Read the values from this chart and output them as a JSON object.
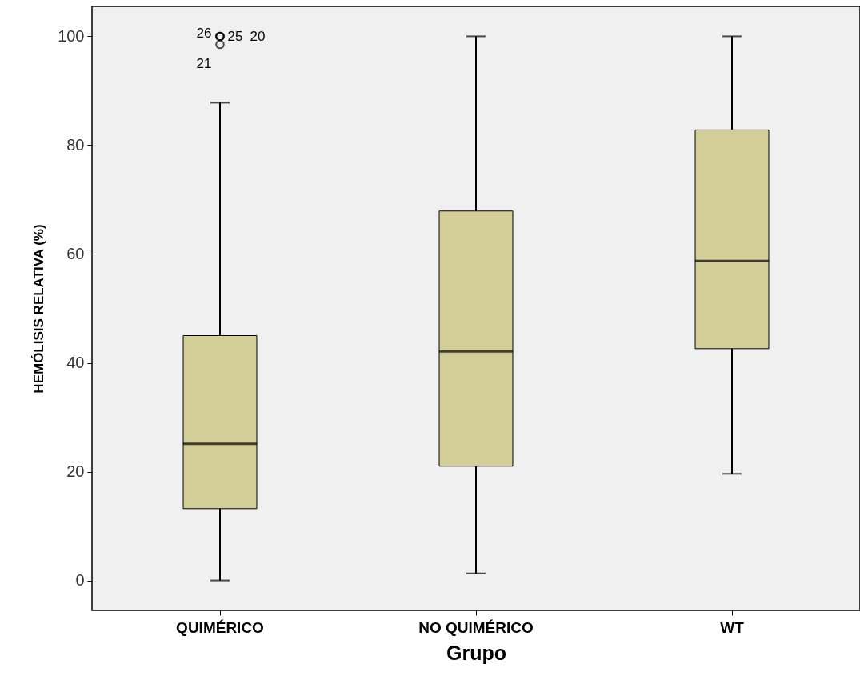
{
  "chart_data": {
    "type": "box",
    "xlabel": "Grupo",
    "ylabel": "HEMÓLISIS RELATIVA (%)",
    "categories": [
      "QUIMÉRICO",
      "NO QUIMÉRICO",
      "WT"
    ],
    "color": "#d3ce97",
    "boxes": [
      {
        "low": 0,
        "q1": 13.2,
        "median": 25.1,
        "q3": 45.0,
        "high": 87.8,
        "outliers": [
          100,
          100,
          100,
          98.5
        ]
      },
      {
        "low": 1.3,
        "q1": 21.0,
        "median": 42.1,
        "q3": 67.9,
        "high": 100
      },
      {
        "low": 19.6,
        "q1": 42.6,
        "median": 58.7,
        "q3": 82.8,
        "high": 100
      }
    ],
    "annotations": [
      "26",
      "25",
      "20",
      "21"
    ],
    "ylim": [
      -5.5,
      105.5
    ],
    "yticks": [
      0,
      20,
      40,
      60,
      80,
      100
    ],
    "grid": false
  }
}
